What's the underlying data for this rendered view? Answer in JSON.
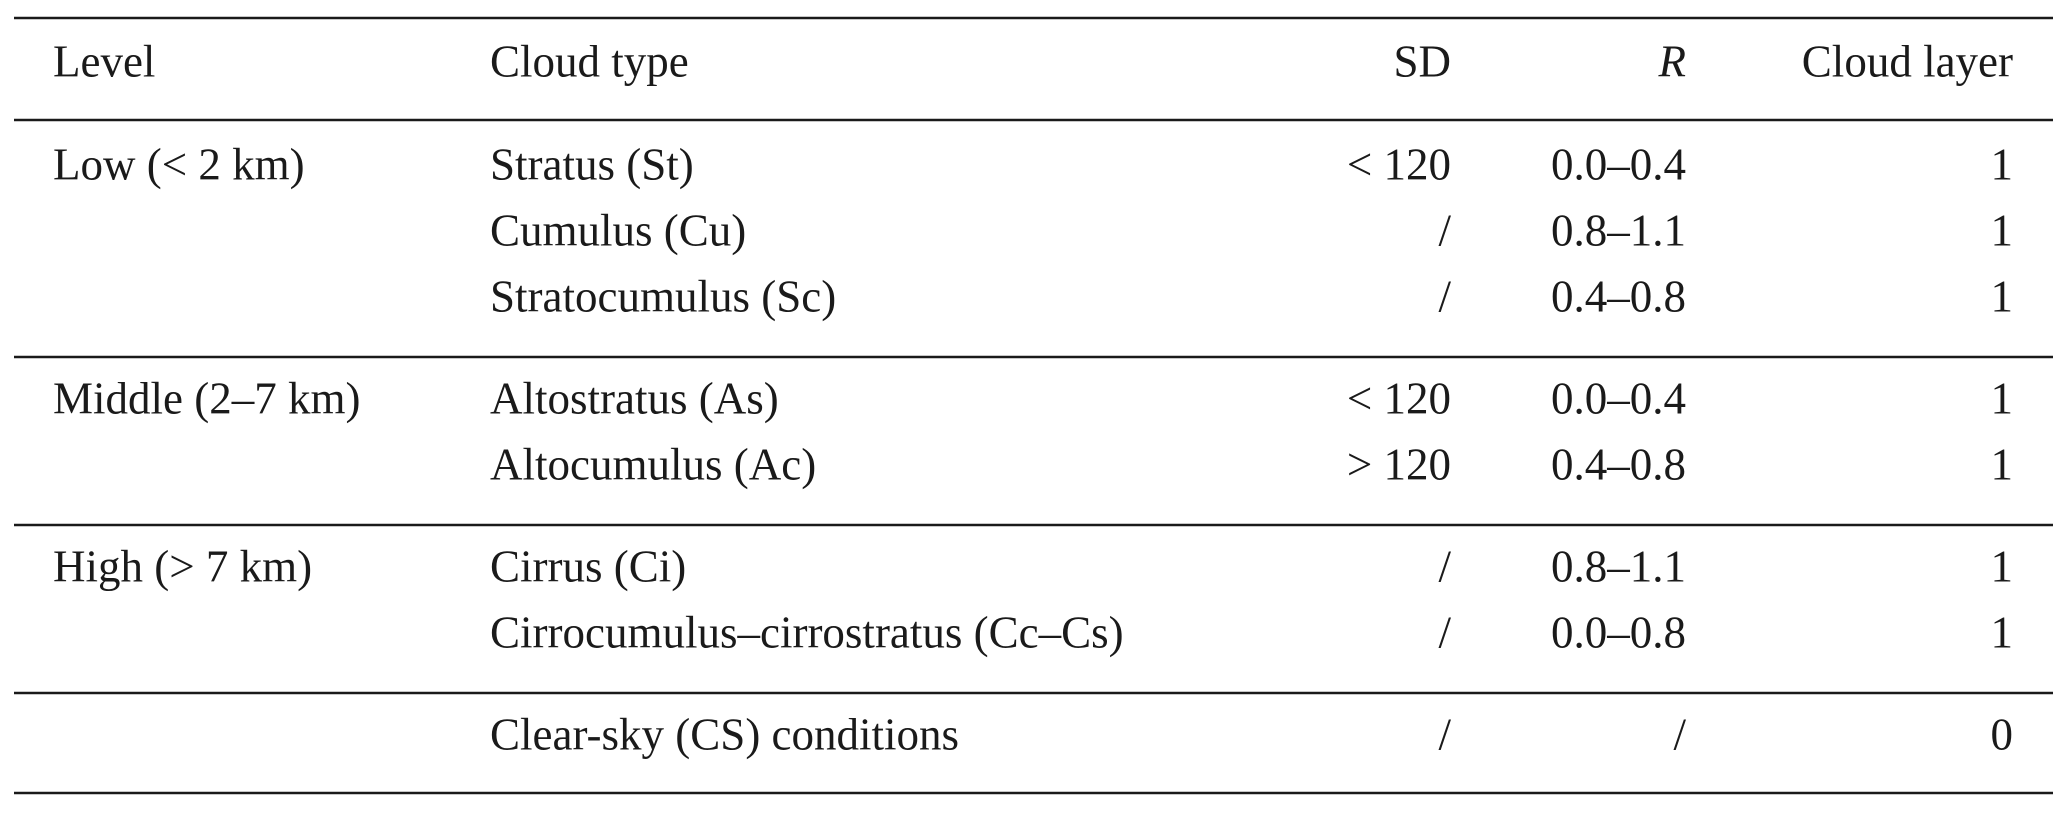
{
  "table": {
    "header": [
      "Level",
      "Cloud type",
      "SD",
      "R",
      "Cloud layer"
    ],
    "groups": [
      {
        "level": "Low (< 2 km)",
        "rows": [
          [
            "Stratus (St)",
            "< 120",
            "0.0–0.4",
            1
          ],
          [
            "Cumulus (Cu)",
            "/",
            "0.8–1.1",
            1
          ],
          [
            "Stratocumulus (Sc)",
            "/",
            "0.4–0.8",
            1
          ]
        ]
      },
      {
        "level": "Middle (2–7 km)",
        "rows": [
          [
            "Altostratus (As)",
            "< 120",
            "0.0–0.4",
            1
          ],
          [
            "Altocumulus (Ac)",
            "> 120",
            "0.4–0.8",
            1
          ]
        ]
      },
      {
        "level": "High (> 7 km)",
        "rows": [
          [
            "Cirrus (Ci)",
            "/",
            "0.8–1.1",
            1
          ],
          [
            "Cirrocumulus–cirrostratus (Cc–Cs)",
            "/",
            "0.0–0.8",
            1
          ]
        ]
      },
      {
        "rows": [
          [
            "Clear-sky (CS) conditions",
            "/",
            "/",
            0
          ]
        ]
      }
    ]
  }
}
